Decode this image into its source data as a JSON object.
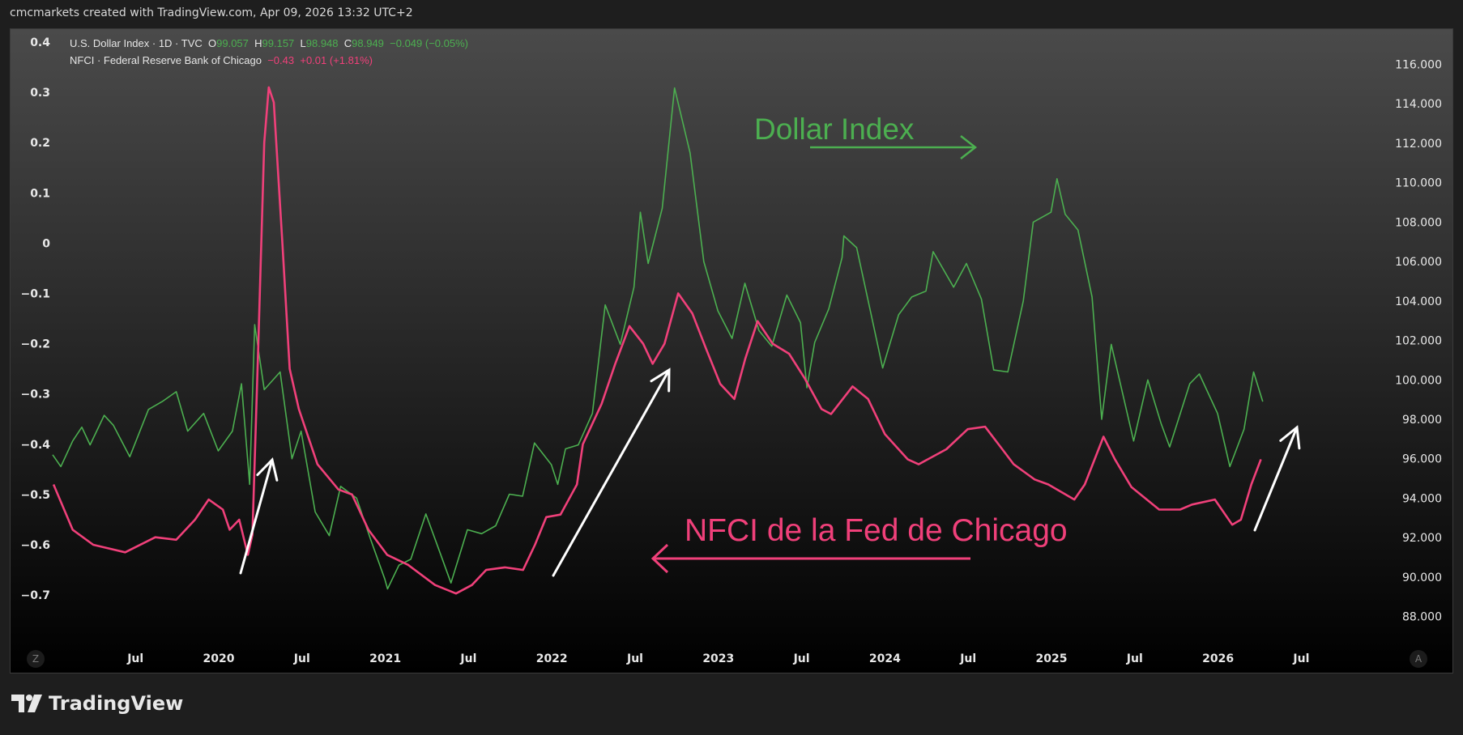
{
  "header": {
    "credit": "cmcmarkets created with TradingView.com, Apr 09, 2026 13:32 UTC+2"
  },
  "legend": {
    "dxy": {
      "name": "U.S. Dollar Index · 1D · TVC",
      "o_label": "O",
      "o": "99.057",
      "h_label": "H",
      "h": "99.157",
      "l_label": "L",
      "l": "98.948",
      "c_label": "C",
      "c": "98.949",
      "change": "−0.049 (−0.05%)"
    },
    "nfci": {
      "name": "NFCI · Federal Reserve Bank of Chicago",
      "value": "−0.43",
      "change": "+0.01 (+1.81%)"
    }
  },
  "logo": {
    "text": "TradingView"
  },
  "buttons": {
    "left": "Z",
    "right": "A"
  },
  "colors": {
    "dxy": "#4caf50",
    "nfci": "#f0407a",
    "annotation_arrows": "#ffffff"
  },
  "chart_data": {
    "type": "line",
    "grid": false,
    "x_ticks": [
      "Jul",
      "2020",
      "Jul",
      "2021",
      "Jul",
      "2022",
      "Jul",
      "2023",
      "Jul",
      "2024",
      "Jul",
      "2025",
      "Jul",
      "2026",
      "Jul"
    ],
    "y_left": {
      "ticks": [
        "0.4",
        "0.3",
        "0.2",
        "0.1",
        "0",
        "−0.1",
        "−0.2",
        "−0.3",
        "−0.4",
        "−0.5",
        "−0.6",
        "−0.7"
      ],
      "range": [
        -0.75,
        0.42
      ]
    },
    "y_right": {
      "ticks": [
        "116.000",
        "114.000",
        "112.000",
        "110.000",
        "108.000",
        "106.000",
        "104.000",
        "102.000",
        "100.000",
        "98.000",
        "96.000",
        "94.000",
        "92.000",
        "90.000",
        "88.000"
      ],
      "range": [
        87,
        117
      ]
    },
    "series": [
      {
        "name": "U.S. Dollar Index",
        "axis": "right",
        "points": [
          [
            "2019-01-02",
            96.2
          ],
          [
            "2019-01-20",
            95.6
          ],
          [
            "2019-02-15",
            96.9
          ],
          [
            "2019-03-07",
            97.6
          ],
          [
            "2019-03-25",
            96.7
          ],
          [
            "2019-04-25",
            98.2
          ],
          [
            "2019-05-15",
            97.7
          ],
          [
            "2019-06-20",
            96.1
          ],
          [
            "2019-07-31",
            98.5
          ],
          [
            "2019-08-30",
            98.9
          ],
          [
            "2019-09-30",
            99.4
          ],
          [
            "2019-10-25",
            97.4
          ],
          [
            "2019-11-29",
            98.3
          ],
          [
            "2019-12-31",
            96.4
          ],
          [
            "2020-01-31",
            97.4
          ],
          [
            "2020-02-20",
            99.8
          ],
          [
            "2020-03-09",
            94.7
          ],
          [
            "2020-03-20",
            102.8
          ],
          [
            "2020-04-10",
            99.5
          ],
          [
            "2020-05-15",
            100.4
          ],
          [
            "2020-06-10",
            96.0
          ],
          [
            "2020-06-30",
            97.4
          ],
          [
            "2020-07-31",
            93.3
          ],
          [
            "2020-08-31",
            92.1
          ],
          [
            "2020-09-25",
            94.6
          ],
          [
            "2020-10-30",
            94.0
          ],
          [
            "2020-11-30",
            91.9
          ],
          [
            "2020-12-31",
            89.9
          ],
          [
            "2021-01-06",
            89.4
          ],
          [
            "2021-01-31",
            90.6
          ],
          [
            "2021-02-26",
            90.9
          ],
          [
            "2021-03-31",
            93.2
          ],
          [
            "2021-04-30",
            91.3
          ],
          [
            "2021-05-25",
            89.7
          ],
          [
            "2021-06-30",
            92.4
          ],
          [
            "2021-07-31",
            92.2
          ],
          [
            "2021-08-31",
            92.6
          ],
          [
            "2021-09-30",
            94.2
          ],
          [
            "2021-10-29",
            94.1
          ],
          [
            "2021-11-24",
            96.8
          ],
          [
            "2021-12-31",
            95.7
          ],
          [
            "2022-01-14",
            94.7
          ],
          [
            "2022-01-31",
            96.5
          ],
          [
            "2022-02-28",
            96.7
          ],
          [
            "2022-03-31",
            98.3
          ],
          [
            "2022-04-28",
            103.8
          ],
          [
            "2022-05-31",
            101.8
          ],
          [
            "2022-06-30",
            104.7
          ],
          [
            "2022-07-14",
            108.5
          ],
          [
            "2022-07-31",
            105.9
          ],
          [
            "2022-08-31",
            108.7
          ],
          [
            "2022-09-27",
            114.8
          ],
          [
            "2022-10-31",
            111.5
          ],
          [
            "2022-11-30",
            106.0
          ],
          [
            "2022-12-31",
            103.5
          ],
          [
            "2023-01-31",
            102.1
          ],
          [
            "2023-02-28",
            104.9
          ],
          [
            "2023-03-31",
            102.5
          ],
          [
            "2023-04-28",
            101.7
          ],
          [
            "2023-05-31",
            104.3
          ],
          [
            "2023-06-30",
            102.9
          ],
          [
            "2023-07-14",
            99.6
          ],
          [
            "2023-07-31",
            101.9
          ],
          [
            "2023-08-31",
            103.6
          ],
          [
            "2023-09-29",
            106.2
          ],
          [
            "2023-10-03",
            107.3
          ],
          [
            "2023-10-31",
            106.7
          ],
          [
            "2023-11-30",
            103.5
          ],
          [
            "2023-12-27",
            100.6
          ],
          [
            "2024-01-31",
            103.3
          ],
          [
            "2024-02-29",
            104.2
          ],
          [
            "2024-03-31",
            104.5
          ],
          [
            "2024-04-16",
            106.5
          ],
          [
            "2024-05-31",
            104.7
          ],
          [
            "2024-06-28",
            105.9
          ],
          [
            "2024-07-31",
            104.1
          ],
          [
            "2024-08-27",
            100.5
          ],
          [
            "2024-09-27",
            100.4
          ],
          [
            "2024-10-31",
            104.0
          ],
          [
            "2024-11-22",
            108.0
          ],
          [
            "2024-12-31",
            108.5
          ],
          [
            "2025-01-13",
            110.2
          ],
          [
            "2025-01-31",
            108.4
          ],
          [
            "2025-02-28",
            107.6
          ],
          [
            "2025-03-31",
            104.2
          ],
          [
            "2025-04-21",
            98.0
          ],
          [
            "2025-05-12",
            101.8
          ],
          [
            "2025-06-30",
            96.9
          ],
          [
            "2025-07-31",
            100.0
          ],
          [
            "2025-08-29",
            97.8
          ],
          [
            "2025-09-17",
            96.6
          ],
          [
            "2025-10-31",
            99.8
          ],
          [
            "2025-11-21",
            100.3
          ],
          [
            "2025-12-31",
            98.3
          ],
          [
            "2026-01-27",
            95.6
          ],
          [
            "2026-02-27",
            97.5
          ],
          [
            "2026-03-20",
            100.4
          ],
          [
            "2026-04-09",
            98.9
          ]
        ]
      },
      {
        "name": "NFCI · Federal Reserve Bank of Chicago",
        "axis": "left",
        "points": [
          [
            "2019-01-04",
            -0.48
          ],
          [
            "2019-02-15",
            -0.57
          ],
          [
            "2019-04-01",
            -0.6
          ],
          [
            "2019-06-10",
            -0.615
          ],
          [
            "2019-08-15",
            -0.585
          ],
          [
            "2019-09-30",
            -0.59
          ],
          [
            "2019-11-10",
            -0.55
          ],
          [
            "2019-12-10",
            -0.51
          ],
          [
            "2020-01-10",
            -0.53
          ],
          [
            "2020-01-25",
            -0.57
          ],
          [
            "2020-02-15",
            -0.55
          ],
          [
            "2020-03-05",
            -0.62
          ],
          [
            "2020-03-15",
            -0.58
          ],
          [
            "2020-03-28",
            -0.2
          ],
          [
            "2020-04-10",
            0.2
          ],
          [
            "2020-04-20",
            0.31
          ],
          [
            "2020-05-01",
            0.28
          ],
          [
            "2020-05-20",
            0.0
          ],
          [
            "2020-06-05",
            -0.25
          ],
          [
            "2020-06-25",
            -0.33
          ],
          [
            "2020-08-05",
            -0.44
          ],
          [
            "2020-09-20",
            -0.49
          ],
          [
            "2020-10-20",
            -0.5
          ],
          [
            "2020-11-25",
            -0.57
          ],
          [
            "2021-01-05",
            -0.62
          ],
          [
            "2021-02-20",
            -0.64
          ],
          [
            "2021-04-20",
            -0.68
          ],
          [
            "2021-06-05",
            -0.697
          ],
          [
            "2021-07-10",
            -0.68
          ],
          [
            "2021-08-10",
            -0.65
          ],
          [
            "2021-09-20",
            -0.645
          ],
          [
            "2021-10-30",
            -0.65
          ],
          [
            "2021-11-25",
            -0.6
          ],
          [
            "2021-12-20",
            -0.545
          ],
          [
            "2022-01-20",
            -0.54
          ],
          [
            "2022-02-25",
            -0.48
          ],
          [
            "2022-03-10",
            -0.4
          ],
          [
            "2022-04-20",
            -0.32
          ],
          [
            "2022-05-20",
            -0.24
          ],
          [
            "2022-06-20",
            -0.165
          ],
          [
            "2022-07-20",
            -0.2
          ],
          [
            "2022-08-10",
            -0.24
          ],
          [
            "2022-09-05",
            -0.2
          ],
          [
            "2022-10-05",
            -0.1
          ],
          [
            "2022-11-05",
            -0.14
          ],
          [
            "2022-12-05",
            -0.21
          ],
          [
            "2023-01-05",
            -0.28
          ],
          [
            "2023-02-05",
            -0.31
          ],
          [
            "2023-03-01",
            -0.23
          ],
          [
            "2023-03-28",
            -0.155
          ],
          [
            "2023-04-30",
            -0.2
          ],
          [
            "2023-06-05",
            -0.22
          ],
          [
            "2023-07-10",
            -0.27
          ],
          [
            "2023-08-15",
            -0.33
          ],
          [
            "2023-09-05",
            -0.34
          ],
          [
            "2023-10-22",
            -0.285
          ],
          [
            "2023-11-25",
            -0.31
          ],
          [
            "2024-01-01",
            -0.38
          ],
          [
            "2024-02-20",
            -0.43
          ],
          [
            "2024-03-15",
            -0.44
          ],
          [
            "2024-05-15",
            -0.41
          ],
          [
            "2024-07-01",
            -0.37
          ],
          [
            "2024-08-08",
            -0.365
          ],
          [
            "2024-09-15",
            -0.41
          ],
          [
            "2024-10-10",
            -0.44
          ],
          [
            "2024-11-25",
            -0.47
          ],
          [
            "2024-12-25",
            -0.48
          ],
          [
            "2025-02-20",
            -0.51
          ],
          [
            "2025-03-15",
            -0.48
          ],
          [
            "2025-04-25",
            -0.385
          ],
          [
            "2025-05-20",
            -0.43
          ],
          [
            "2025-06-25",
            -0.485
          ],
          [
            "2025-08-25",
            -0.53
          ],
          [
            "2025-10-10",
            -0.53
          ],
          [
            "2025-11-05",
            -0.52
          ],
          [
            "2025-12-25",
            -0.51
          ],
          [
            "2026-02-01",
            -0.56
          ],
          [
            "2026-02-20",
            -0.55
          ],
          [
            "2026-03-15",
            -0.48
          ],
          [
            "2026-04-05",
            -0.43
          ]
        ]
      }
    ],
    "annotations": [
      {
        "text": "Dollar Index",
        "color": "#4caf50",
        "arrow": "right"
      },
      {
        "text": "NFCI de la Fed de Chicago",
        "color": "#f0407a",
        "arrow": "left"
      }
    ]
  }
}
